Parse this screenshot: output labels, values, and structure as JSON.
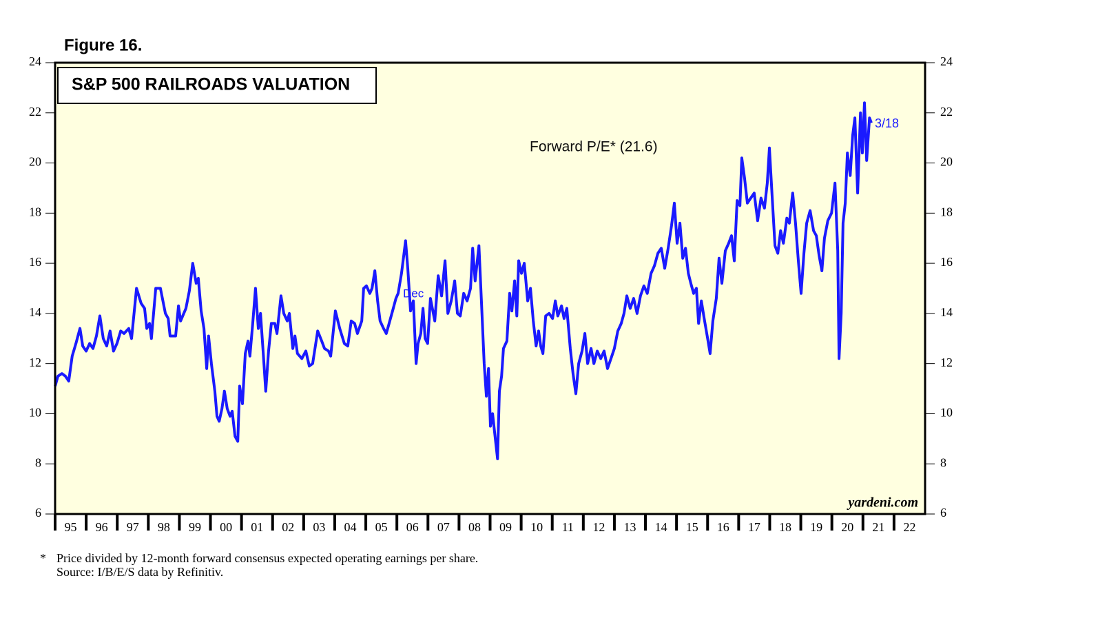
{
  "chart_data": {
    "type": "line",
    "figure_label": "Figure 16.",
    "title": "S&P 500 RAILROADS VALUATION",
    "watermark": "yardeni.com",
    "annotations": [
      "Dec",
      "3/18"
    ],
    "footnotes": [
      "*",
      "Price divided by 12-month forward consensus expected operating earnings per share.",
      "Source: I/B/E/S data by Refinitiv."
    ],
    "xlim": [
      1995,
      2023
    ],
    "xticks": [
      {
        "value": 1995,
        "label": "95"
      },
      {
        "value": 1996,
        "label": "96"
      },
      {
        "value": 1997,
        "label": "97"
      },
      {
        "value": 1998,
        "label": "98"
      },
      {
        "value": 1999,
        "label": "99"
      },
      {
        "value": 2000,
        "label": "00"
      },
      {
        "value": 2001,
        "label": "01"
      },
      {
        "value": 2002,
        "label": "02"
      },
      {
        "value": 2003,
        "label": "03"
      },
      {
        "value": 2004,
        "label": "04"
      },
      {
        "value": 2005,
        "label": "05"
      },
      {
        "value": 2006,
        "label": "06"
      },
      {
        "value": 2007,
        "label": "07"
      },
      {
        "value": 2008,
        "label": "08"
      },
      {
        "value": 2009,
        "label": "09"
      },
      {
        "value": 2010,
        "label": "10"
      },
      {
        "value": 2011,
        "label": "11"
      },
      {
        "value": 2012,
        "label": "12"
      },
      {
        "value": 2013,
        "label": "13"
      },
      {
        "value": 2014,
        "label": "14"
      },
      {
        "value": 2015,
        "label": "15"
      },
      {
        "value": 2016,
        "label": "16"
      },
      {
        "value": 2017,
        "label": "17"
      },
      {
        "value": 2018,
        "label": "18"
      },
      {
        "value": 2019,
        "label": "19"
      },
      {
        "value": 2020,
        "label": "20"
      },
      {
        "value": 2021,
        "label": "21"
      },
      {
        "value": 2022,
        "label": "22"
      }
    ],
    "ylim": [
      6,
      24
    ],
    "yticks": [
      6,
      8,
      10,
      12,
      14,
      16,
      18,
      20,
      22,
      24
    ],
    "x": [
      1995.0,
      1995.09,
      1995.22,
      1995.33,
      1995.44,
      1995.55,
      1995.67,
      1995.8,
      1995.89,
      1996.0,
      1996.11,
      1996.22,
      1996.33,
      1996.44,
      1996.55,
      1996.66,
      1996.77,
      1996.88,
      1996.99,
      1997.11,
      1997.22,
      1997.37,
      1997.46,
      1997.62,
      1997.77,
      1997.88,
      1997.95,
      1998.04,
      1998.1,
      1998.24,
      1998.39,
      1998.55,
      1998.64,
      1998.7,
      1998.88,
      1998.97,
      1999.04,
      1999.21,
      1999.32,
      1999.43,
      1999.54,
      1999.61,
      1999.7,
      1999.79,
      1999.88,
      1999.94,
      2000.03,
      2000.14,
      2000.21,
      2000.28,
      2000.37,
      2000.45,
      2000.54,
      2000.63,
      2000.7,
      2000.79,
      2000.88,
      2000.94,
      2001.03,
      2001.12,
      2001.21,
      2001.27,
      2001.36,
      2001.45,
      2001.54,
      2001.61,
      2001.7,
      2001.78,
      2001.87,
      2001.96,
      2002.07,
      2002.14,
      2002.21,
      2002.27,
      2002.36,
      2002.47,
      2002.54,
      2002.65,
      2002.72,
      2002.8,
      2002.94,
      2003.07,
      2003.18,
      2003.29,
      2003.45,
      2003.58,
      2003.67,
      2003.8,
      2003.87,
      2004.02,
      2004.16,
      2004.31,
      2004.42,
      2004.53,
      2004.64,
      2004.73,
      2004.87,
      2004.93,
      2005.02,
      2005.13,
      2005.2,
      2005.29,
      2005.38,
      2005.46,
      2005.57,
      2005.66,
      2005.75,
      2005.86,
      2005.97,
      2006.04,
      2006.15,
      2006.22,
      2006.28,
      2006.35,
      2006.44,
      2006.53,
      2006.62,
      2006.68,
      2006.77,
      2006.84,
      2006.91,
      2006.99,
      2007.08,
      2007.22,
      2007.33,
      2007.44,
      2007.55,
      2007.64,
      2007.75,
      2007.86,
      2007.95,
      2008.04,
      2008.15,
      2008.26,
      2008.37,
      2008.44,
      2008.52,
      2008.64,
      2008.72,
      2008.81,
      2008.88,
      2008.95,
      2009.01,
      2009.08,
      2009.15,
      2009.24,
      2009.3,
      2009.37,
      2009.43,
      2009.54,
      2009.63,
      2009.7,
      2009.79,
      2009.86,
      2009.92,
      2010.01,
      2010.1,
      2010.21,
      2010.3,
      2010.39,
      2010.48,
      2010.56,
      2010.63,
      2010.7,
      2010.79,
      2010.9,
      2011.01,
      2011.1,
      2011.18,
      2011.3,
      2011.38,
      2011.47,
      2011.58,
      2011.67,
      2011.76,
      2011.85,
      2011.96,
      2012.05,
      2012.14,
      2012.25,
      2012.34,
      2012.45,
      2012.56,
      2012.67,
      2012.78,
      2012.89,
      2013.0,
      2013.11,
      2013.22,
      2013.31,
      2013.4,
      2013.51,
      2013.62,
      2013.73,
      2013.84,
      2013.95,
      2014.06,
      2014.18,
      2014.29,
      2014.4,
      2014.51,
      2014.62,
      2014.73,
      2014.84,
      2014.93,
      2015.02,
      2015.11,
      2015.2,
      2015.29,
      2015.38,
      2015.46,
      2015.55,
      2015.64,
      2015.71,
      2015.8,
      2015.89,
      2016.0,
      2016.08,
      2016.17,
      2016.28,
      2016.37,
      2016.46,
      2016.57,
      2016.68,
      2016.77,
      2016.86,
      2016.95,
      2017.04,
      2017.1,
      2017.19,
      2017.28,
      2017.39,
      2017.5,
      2017.61,
      2017.72,
      2017.83,
      2017.92,
      2017.99,
      2018.08,
      2018.17,
      2018.26,
      2018.35,
      2018.44,
      2018.55,
      2018.63,
      2018.74,
      2018.83,
      2018.92,
      2019.01,
      2019.1,
      2019.19,
      2019.3,
      2019.41,
      2019.5,
      2019.59,
      2019.68,
      2019.76,
      2019.87,
      2019.99,
      2020.1,
      2020.19,
      2020.23,
      2020.3,
      2020.36,
      2020.43,
      2020.5,
      2020.59,
      2020.67,
      2020.74,
      2020.83,
      2020.92,
      2020.98,
      2021.05,
      2021.12,
      2021.21,
      2021.27
    ],
    "series": [
      {
        "name": "Forward P/E* (21.6)",
        "color": "#1a1aff",
        "values": [
          11.1,
          11.5,
          11.6,
          11.5,
          11.3,
          12.3,
          12.8,
          13.4,
          12.7,
          12.5,
          12.8,
          12.6,
          13.1,
          13.9,
          13.0,
          12.7,
          13.3,
          12.5,
          12.8,
          13.3,
          13.2,
          13.4,
          13.0,
          15.0,
          14.4,
          14.2,
          13.4,
          13.6,
          13.0,
          15.0,
          15.0,
          14.0,
          13.8,
          13.1,
          13.1,
          14.3,
          13.7,
          14.2,
          14.9,
          16.0,
          15.2,
          15.4,
          14.1,
          13.4,
          11.8,
          13.1,
          12.0,
          10.9,
          9.9,
          9.7,
          10.2,
          10.9,
          10.2,
          9.9,
          10.1,
          9.1,
          8.9,
          11.1,
          10.4,
          12.4,
          12.9,
          12.3,
          13.6,
          15.0,
          13.4,
          14.0,
          12.4,
          10.9,
          12.5,
          13.6,
          13.6,
          13.2,
          14.0,
          14.7,
          14.0,
          13.7,
          14.0,
          12.6,
          13.1,
          12.4,
          12.2,
          12.5,
          11.9,
          12.0,
          13.3,
          12.9,
          12.6,
          12.5,
          12.3,
          14.1,
          13.4,
          12.8,
          12.7,
          13.7,
          13.6,
          13.2,
          13.7,
          15.0,
          15.1,
          14.8,
          15.0,
          15.7,
          14.5,
          13.7,
          13.4,
          13.2,
          13.6,
          14.1,
          14.6,
          14.8,
          15.6,
          16.3,
          16.9,
          15.8,
          14.1,
          14.5,
          12.0,
          12.8,
          13.2,
          14.2,
          13.0,
          12.8,
          14.6,
          13.7,
          15.5,
          14.7,
          16.1,
          14.0,
          14.5,
          15.3,
          14.0,
          13.9,
          14.8,
          14.5,
          15.0,
          16.6,
          15.3,
          16.7,
          14.5,
          12.0,
          10.7,
          11.8,
          9.5,
          10.0,
          9.2,
          8.2,
          10.9,
          11.5,
          12.6,
          12.9,
          14.8,
          14.1,
          15.3,
          13.9,
          16.1,
          15.6,
          16.0,
          14.5,
          15.0,
          13.7,
          12.7,
          13.3,
          12.7,
          12.4,
          13.9,
          14.0,
          13.8,
          14.5,
          13.9,
          14.3,
          13.8,
          14.2,
          12.6,
          11.6,
          10.8,
          12.0,
          12.5,
          13.2,
          12.0,
          12.6,
          12.0,
          12.5,
          12.2,
          12.5,
          11.8,
          12.2,
          12.6,
          13.3,
          13.6,
          14.0,
          14.7,
          14.2,
          14.6,
          14.0,
          14.7,
          15.1,
          14.8,
          15.6,
          15.9,
          16.4,
          16.6,
          15.8,
          16.6,
          17.5,
          18.4,
          16.8,
          17.6,
          16.2,
          16.6,
          15.6,
          15.2,
          14.8,
          15.0,
          13.6,
          14.5,
          13.8,
          13.0,
          12.4,
          13.7,
          14.6,
          16.2,
          15.2,
          16.5,
          16.8,
          17.1,
          16.1,
          18.5,
          18.3,
          20.2,
          19.4,
          18.4,
          18.6,
          18.8,
          17.7,
          18.6,
          18.2,
          19.2,
          20.6,
          18.6,
          16.7,
          16.4,
          17.3,
          16.8,
          17.8,
          17.6,
          18.8,
          17.6,
          16.1,
          14.8,
          16.4,
          17.6,
          18.1,
          17.3,
          17.1,
          16.3,
          15.7,
          17.0,
          17.7,
          18.0,
          19.2,
          16.5,
          12.2,
          14.0,
          17.6,
          18.4,
          20.4,
          19.5,
          21.1,
          21.8,
          18.8,
          22.0,
          20.4,
          22.4,
          20.1,
          21.8,
          21.6
        ]
      }
    ]
  }
}
